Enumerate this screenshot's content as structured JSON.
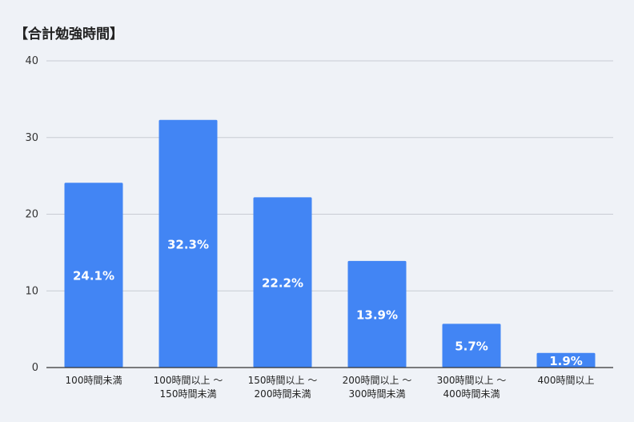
{
  "chart_data": {
    "type": "bar",
    "title": "【合計勉強時間】",
    "categories": [
      [
        "100時間未満"
      ],
      [
        "100時間以上 〜",
        "150時間未満"
      ],
      [
        "150時間以上 〜",
        "200時間未満"
      ],
      [
        "200時間以上 〜",
        "300時間未満"
      ],
      [
        "300時間以上 〜",
        "400時間未満"
      ],
      [
        "400時間以上"
      ]
    ],
    "values": [
      24.1,
      32.3,
      22.2,
      13.9,
      5.7,
      1.9
    ],
    "data_labels": [
      "24.1%",
      "32.3%",
      "22.2%",
      "13.9%",
      "5.7%",
      "1.9%"
    ],
    "y_ticks": [
      "0",
      "10",
      "20",
      "30",
      "40"
    ],
    "ylim": [
      0,
      40
    ],
    "grid": true,
    "bar_color": "#4285f4",
    "grid_color": "#c8ccd4",
    "axis_color": "#333333"
  }
}
